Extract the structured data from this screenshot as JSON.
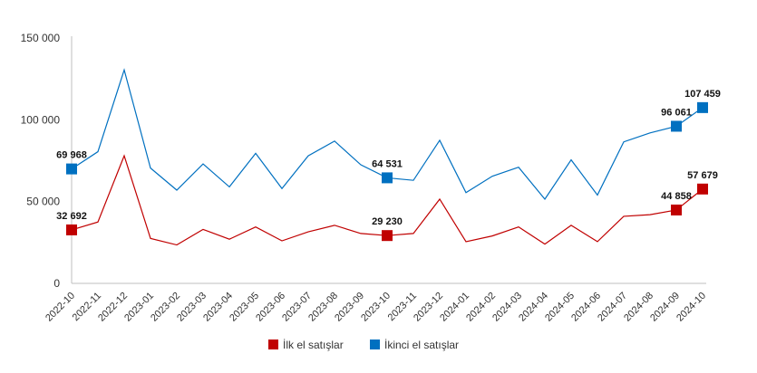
{
  "chart_data": {
    "type": "line",
    "x": [
      "2022-10",
      "2022-11",
      "2022-12",
      "2023-01",
      "2023-02",
      "2023-03",
      "2023-04",
      "2023-05",
      "2023-06",
      "2023-07",
      "2023-08",
      "2023-09",
      "2023-10",
      "2023-11",
      "2023-12",
      "2024-01",
      "2024-02",
      "2024-03",
      "2024-04",
      "2024-05",
      "2024-06",
      "2024-07",
      "2024-08",
      "2024-09",
      "2024-10"
    ],
    "series": [
      {
        "name": "İlk el satışlar",
        "color": "#c00000",
        "values": [
          32692,
          37500,
          78000,
          27500,
          23500,
          33000,
          27000,
          34500,
          26000,
          31500,
          35500,
          30500,
          29230,
          30500,
          51500,
          25500,
          29000,
          34500,
          24000,
          35500,
          25500,
          41000,
          42000,
          44858,
          57679
        ],
        "labels": [
          {
            "index": 0,
            "text": "32 692"
          },
          {
            "index": 12,
            "text": "29 230"
          },
          {
            "index": 23,
            "text": "44 858"
          },
          {
            "index": 24,
            "text": "57 679"
          }
        ]
      },
      {
        "name": "İkinci el satışlar",
        "color": "#0070c0",
        "values": [
          69968,
          80500,
          130500,
          70500,
          57000,
          73000,
          59000,
          79500,
          58000,
          78000,
          87000,
          72500,
          64531,
          63000,
          87500,
          55500,
          65500,
          71000,
          51500,
          75500,
          54000,
          86500,
          92000,
          96061,
          107459
        ],
        "labels": [
          {
            "index": 0,
            "text": "69 968"
          },
          {
            "index": 12,
            "text": "64 531"
          },
          {
            "index": 23,
            "text": "96 061"
          },
          {
            "index": 24,
            "text": "107 459"
          }
        ]
      }
    ],
    "y_ticks": [
      {
        "value": 0,
        "label": "0"
      },
      {
        "value": 50000,
        "label": "50 000"
      },
      {
        "value": 100000,
        "label": "100 000"
      },
      {
        "value": 150000,
        "label": "150 000"
      }
    ],
    "ylim": [
      0,
      150000
    ],
    "legend_position": "bottom",
    "grid": false
  }
}
